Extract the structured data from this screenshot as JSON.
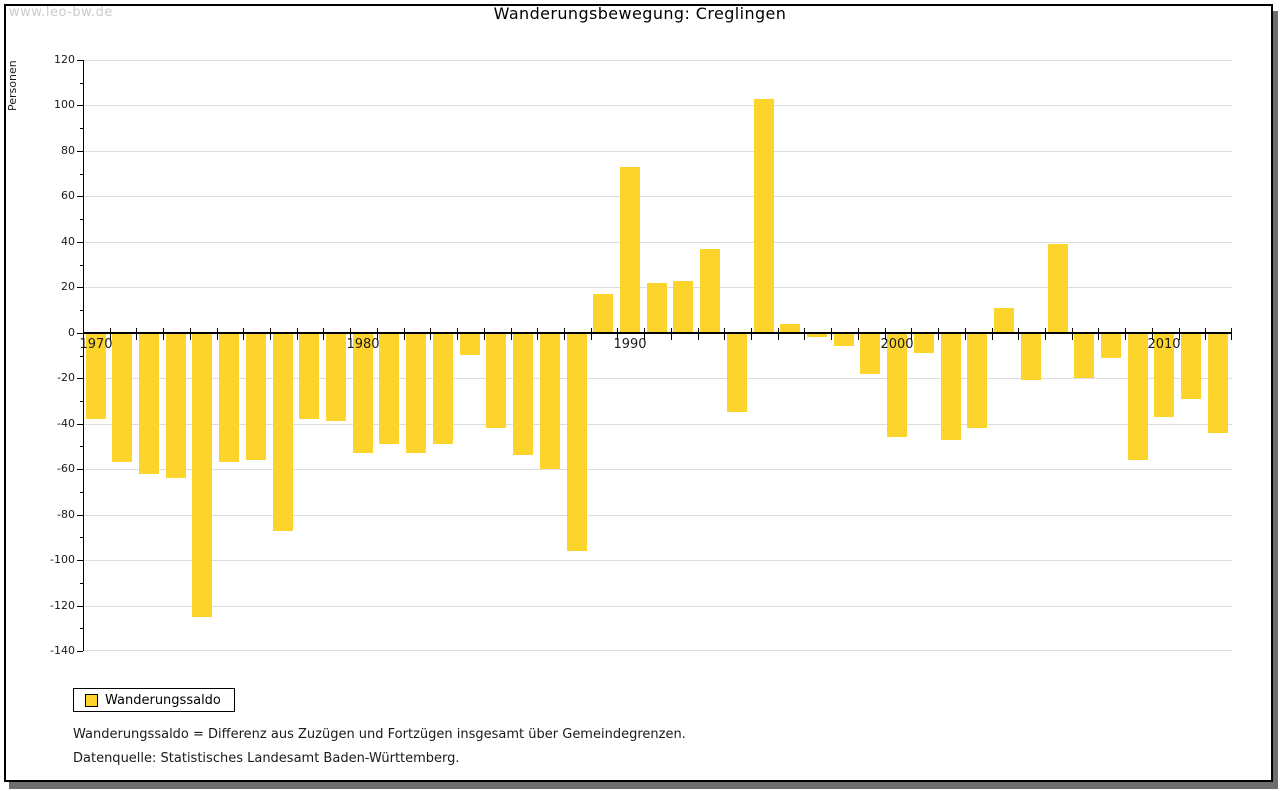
{
  "watermark": "www.leo-bw.de",
  "title": "Wanderungsbewegung: Creglingen",
  "legend": {
    "label": "Wanderungssaldo"
  },
  "footnotes": [
    "Wanderungssaldo = Differenz aus Zuzügen und Fortzügen insgesamt über Gemeindegrenzen.",
    "Datenquelle: Statistisches Landesamt Baden-Württemberg."
  ],
  "colors": {
    "bar": "#fcd42c",
    "grid": "#dddddd",
    "axis": "#000000",
    "frame_shadow": "#6e6e6e",
    "watermark": "#cbcbcb"
  },
  "chart_data": {
    "type": "bar",
    "title": "Wanderungsbewegung: Creglingen",
    "xlabel": "",
    "ylabel": "Personen",
    "ylim": [
      -140,
      120
    ],
    "ytick_major_step": 20,
    "ytick_minor_step": 10,
    "grid": true,
    "legend_position": "bottom-left",
    "xticks_labeled": [
      1970,
      1980,
      1990,
      2000,
      2010
    ],
    "categories": [
      1970,
      1971,
      1972,
      1973,
      1974,
      1975,
      1976,
      1977,
      1978,
      1979,
      1980,
      1981,
      1982,
      1983,
      1984,
      1985,
      1986,
      1987,
      1988,
      1989,
      1990,
      1991,
      1992,
      1993,
      1994,
      1995,
      1996,
      1997,
      1998,
      1999,
      2000,
      2001,
      2002,
      2003,
      2004,
      2005,
      2006,
      2007,
      2008,
      2009,
      2010,
      2011,
      2012
    ],
    "series": [
      {
        "name": "Wanderungssaldo",
        "values": [
          -38,
          -57,
          -62,
          -64,
          -125,
          -57,
          -56,
          -87,
          -38,
          -39,
          -53,
          -49,
          -53,
          -49,
          -10,
          -42,
          -54,
          -60,
          -96,
          17,
          73,
          22,
          23,
          37,
          -35,
          103,
          4,
          -2,
          -6,
          -18,
          -46,
          -9,
          -47,
          -42,
          11,
          -21,
          39,
          -20,
          -11,
          -56,
          -37,
          -29,
          -44
        ]
      }
    ]
  }
}
